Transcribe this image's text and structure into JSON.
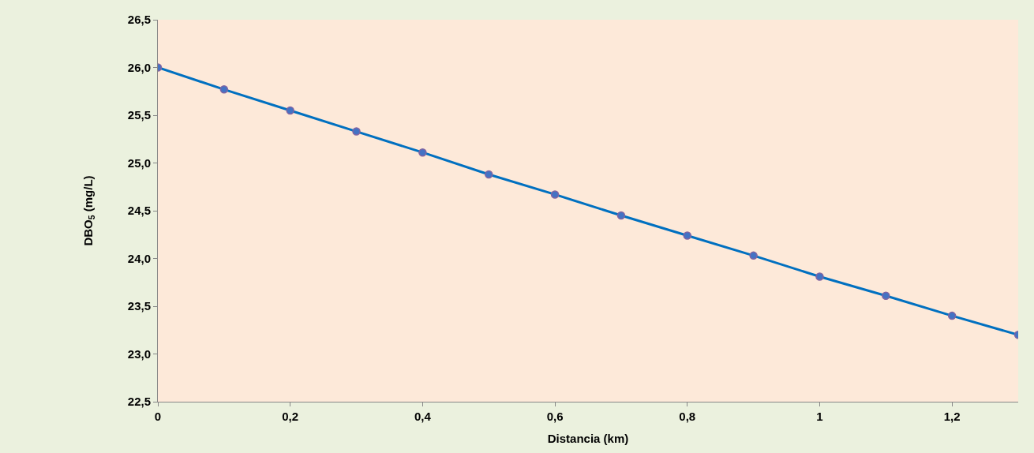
{
  "chart_data": {
    "type": "line",
    "xlabel": "Distancia (km)",
    "ylabel": "DBO$_{5}$ (mg/L)",
    "x": [
      0,
      0.1,
      0.2,
      0.3,
      0.4,
      0.5,
      0.6,
      0.7,
      0.8,
      0.9,
      1.0,
      1.1,
      1.2,
      1.3
    ],
    "series": [
      {
        "color": "#0070c0",
        "values": [
          26.0,
          25.77,
          25.55,
          25.33,
          25.11,
          24.88,
          24.67,
          24.45,
          24.24,
          24.03,
          23.81,
          23.61,
          23.4,
          23.2
        ]
      }
    ],
    "xlim": [
      0,
      1.3
    ],
    "xticks": [
      0,
      {
        "value": 0.2,
        "label": "0,2"
      },
      {
        "value": 0.4,
        "label": "0,4"
      },
      {
        "value": 0.6,
        "label": "0,6"
      },
      {
        "value": 0.8,
        "label": "0,8"
      },
      1,
      {
        "value": 1.2,
        "label": "1,2"
      }
    ],
    "ylim": [
      22.5,
      26.5
    ],
    "yticks": [
      {
        "value": 22.5,
        "label": "22,5"
      },
      {
        "value": 23,
        "label": "23,0"
      },
      {
        "value": 23.5,
        "label": "23,5"
      },
      {
        "value": 24,
        "label": "24,0"
      },
      {
        "value": 24.5,
        "label": "24,5"
      },
      {
        "value": 25,
        "label": "25,0"
      },
      {
        "value": 25.5,
        "label": "25,5"
      },
      {
        "value": 26,
        "label": "26,0"
      },
      {
        "value": 26.5,
        "label": "26,5"
      }
    ],
    "marker": "circle"
  }
}
